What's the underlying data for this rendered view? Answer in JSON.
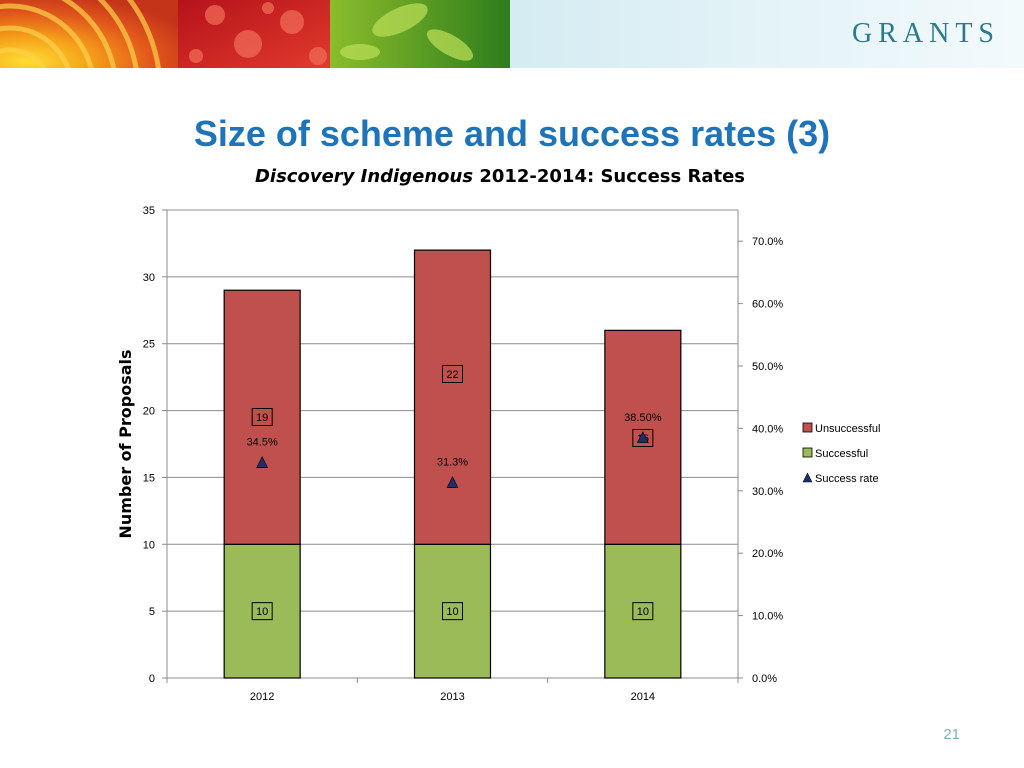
{
  "header": {
    "brand": "GRANTS"
  },
  "slide": {
    "title": "Size of scheme and success rates (3)",
    "page_number": "21"
  },
  "chart_data": {
    "type": "bar",
    "title_italic": "Discovery Indigenous",
    "title_rest": " 2012-2014: Success Rates",
    "categories": [
      "2012",
      "2013",
      "2014"
    ],
    "ylabel": "Number of Proposals",
    "ylim": [
      0,
      35
    ],
    "yticks": [
      0,
      5,
      10,
      15,
      20,
      25,
      30,
      35
    ],
    "y2lim": [
      0,
      0.75
    ],
    "y2ticks": [
      "0.0%",
      "10.0%",
      "20.0%",
      "30.0%",
      "40.0%",
      "50.0%",
      "60.0%",
      "70.0%"
    ],
    "stacked": true,
    "series": [
      {
        "name": "Successful",
        "values": [
          10,
          10,
          10
        ],
        "color": "#9bbb59",
        "labels": [
          "10",
          "10",
          "10"
        ]
      },
      {
        "name": "Unsuccessful",
        "values": [
          19,
          22,
          16
        ],
        "color": "#c0504d",
        "labels": [
          "19",
          "22",
          "16"
        ]
      }
    ],
    "rate_series": {
      "name": "Success rate",
      "values": [
        0.345,
        0.313,
        0.385
      ],
      "labels": [
        "34.5%",
        "31.3%",
        "38.50%"
      ],
      "marker_color": "#1f2d6b"
    },
    "legend_order": [
      "Unsuccessful",
      "Successful",
      "Success rate"
    ],
    "legend_position": "right",
    "grid": true
  }
}
